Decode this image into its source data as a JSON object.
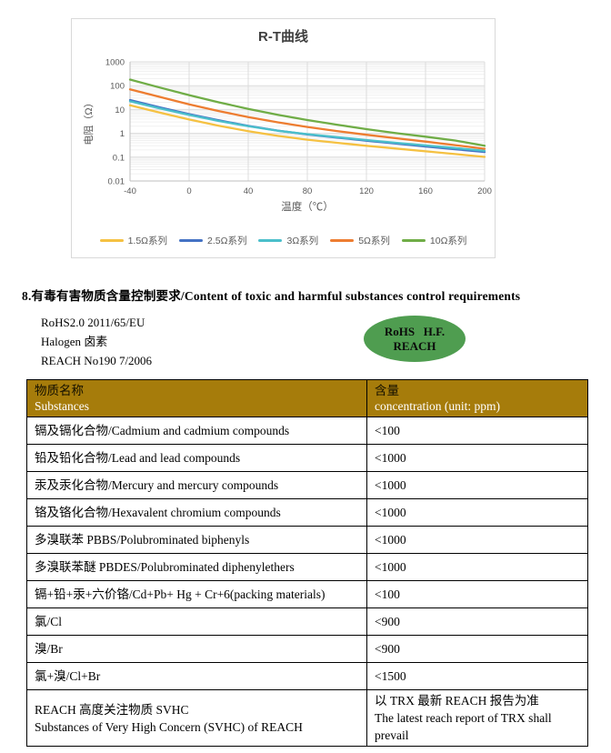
{
  "chart_data": {
    "type": "line",
    "title": "R-T曲线",
    "xlabel": "温度（℃）",
    "ylabel": "电阻（Ω）",
    "x_ticks": [
      -40,
      0,
      40,
      80,
      120,
      160,
      200
    ],
    "y_ticks": [
      1000,
      100,
      10,
      1,
      0.1,
      0.01
    ],
    "xlim": [
      -40,
      200
    ],
    "ylim": [
      0.01,
      1000
    ],
    "y_scale": "log",
    "grid": true,
    "legend_position": "bottom",
    "x": [
      -40,
      -20,
      0,
      20,
      40,
      60,
      80,
      100,
      120,
      140,
      160,
      180,
      200
    ],
    "series": [
      {
        "name": "1.5Ω系列",
        "color": "#F5C142",
        "values": [
          15,
          7.4,
          3.8,
          2.1,
          1.22,
          0.78,
          0.54,
          0.4,
          0.3,
          0.23,
          0.175,
          0.135,
          0.103
        ]
      },
      {
        "name": "2.5Ω系列",
        "color": "#4472C4",
        "values": [
          25,
          12.4,
          6.4,
          3.5,
          2.05,
          1.3,
          0.9,
          0.66,
          0.49,
          0.37,
          0.28,
          0.215,
          0.165
        ]
      },
      {
        "name": "3Ω系列",
        "color": "#4BBFCB",
        "values": [
          22,
          11.2,
          5.9,
          3.3,
          1.98,
          1.28,
          0.92,
          0.69,
          0.52,
          0.4,
          0.31,
          0.24,
          0.185
        ]
      },
      {
        "name": "5Ω系列",
        "color": "#ED7D31",
        "values": [
          70,
          34,
          16.5,
          8.6,
          4.8,
          2.9,
          1.85,
          1.25,
          0.87,
          0.62,
          0.45,
          0.32,
          0.225
        ]
      },
      {
        "name": "10Ω系列",
        "color": "#70AD47",
        "values": [
          180,
          84,
          40,
          20,
          10.6,
          6.0,
          3.6,
          2.3,
          1.5,
          1.02,
          0.72,
          0.5,
          0.3
        ]
      }
    ],
    "colors": {
      "grid_major": "#dcdcdc",
      "grid_minor": "#f0f0f0",
      "axis_line": "#bfbfbf",
      "tick_text": "#595959"
    }
  },
  "section": {
    "heading": "8.有毒有害物质含量控制要求/Content of toxic and harmful substances control requirements"
  },
  "compliance": {
    "lines": [
      "RoHS2.0 2011/65/EU",
      "Halogen 卤素",
      "REACH No190 7/2006"
    ],
    "badge": {
      "line1": "RoHS   H.F.",
      "line2": "REACH",
      "color": "#4F9D50"
    }
  },
  "table": {
    "header": {
      "col1_zh": "物质名称",
      "col1_en": "Substances",
      "col2_zh": "含量",
      "col2_en": "concentration (unit: ppm)",
      "bg": "#A67C0B"
    },
    "rows": [
      {
        "substance": "镉及镉化合物/Cadmium and cadmium compounds",
        "value": "<100"
      },
      {
        "substance": "铅及铅化合物/Lead and lead compounds",
        "value": "<1000"
      },
      {
        "substance": "汞及汞化合物/Mercury and mercury compounds",
        "value": "<1000"
      },
      {
        "substance": "铬及铬化合物/Hexavalent chromium compounds",
        "value": "<1000"
      },
      {
        "substance": "多溴联苯 PBBS/Polubrominated biphenyls",
        "value": "<1000"
      },
      {
        "substance": "多溴联苯醚 PBDES/Polubrominated diphenylethers",
        "value": "<1000"
      },
      {
        "substance": "镉+铅+汞+六价铬/Cd+Pb+ Hg + Cr+6(packing materials)",
        "value": "<100"
      },
      {
        "substance": "氯/Cl",
        "value": "<900"
      },
      {
        "substance": "溴/Br",
        "value": "<900"
      },
      {
        "substance": "氯+溴/Cl+Br",
        "value": "<1500"
      },
      {
        "substance": "REACH 高度关注物质 SVHC\nSubstances of Very High Concern (SVHC) of REACH",
        "value": "以 TRX 最新 REACH 报告为准\nThe latest reach report of TRX shall prevail"
      }
    ]
  }
}
